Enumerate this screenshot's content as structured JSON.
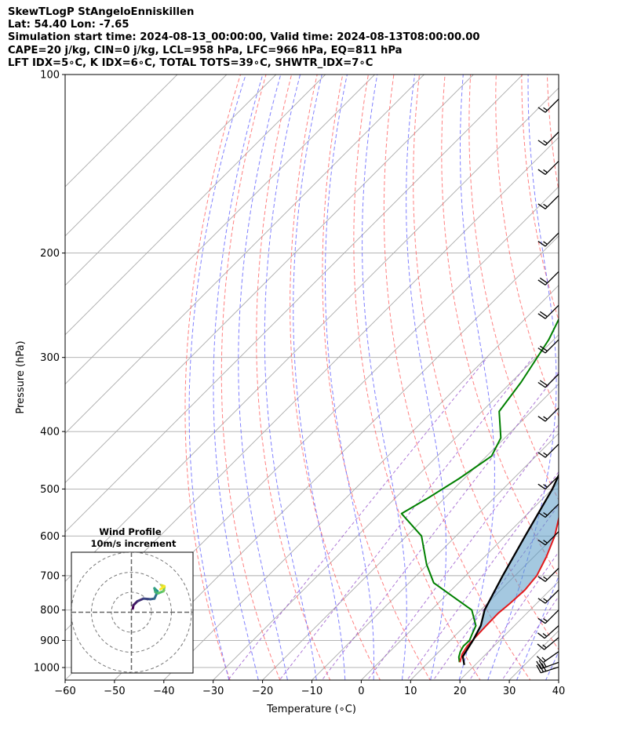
{
  "header": {
    "line1": "SkewTLogP StAngeloEnniskillen",
    "line2": "Lat: 54.40   Lon: -7.65",
    "line3": "Simulation start time: 2024-08-13_00:00:00, Valid time: 2024-08-13T08:00:00.00",
    "line4": "CAPE=20 j/kg, CIN=0 j/kg, LCL=958 hPa, LFC=966 hPa, EQ=811 hPa",
    "line5": "LFT IDX=5∘C, K IDX=6∘C, TOTAL TOTS=39∘C, SHWTR_IDX=7∘C"
  },
  "chart_data": {
    "type": "line",
    "subtype": "skew-T log-P",
    "xlabel": "Temperature (∘C)",
    "ylabel": "Pressure (hPa)",
    "xlim": [
      -60,
      40
    ],
    "ylim": [
      1050,
      100
    ],
    "y_scale": "log",
    "grid": true,
    "x_ticks": [
      "−60",
      "−50",
      "−40",
      "−30",
      "−20",
      "−10",
      "0",
      "10",
      "20",
      "30",
      "40"
    ],
    "y_ticks": [
      100,
      200,
      300,
      400,
      500,
      600,
      700,
      800,
      900,
      1000
    ],
    "colors": {
      "temperature": "#e31a1c",
      "dewpoint": "#008000",
      "parcel": "#000000",
      "cape_fill": "#5a9ac6",
      "dry_adiabat": "#ff6b6b",
      "moist_adiabat": "#6b6bff",
      "mixing_ratio": "#9955cc",
      "isotherm": "#aaaaaa"
    },
    "series": [
      {
        "role": "temperature",
        "points": [
          [
            16.4,
            980
          ],
          [
            15.2,
            950
          ],
          [
            14.6,
            920
          ],
          [
            14.4,
            880
          ],
          [
            14.3,
            850
          ],
          [
            14.2,
            810
          ],
          [
            14.6,
            780
          ],
          [
            14.9,
            740
          ],
          [
            14.4,
            700
          ],
          [
            12.5,
            650
          ],
          [
            10.0,
            600
          ],
          [
            6.5,
            550
          ],
          [
            2.0,
            500
          ],
          [
            -2.0,
            450
          ],
          [
            -6.5,
            400
          ],
          [
            -11.2,
            350
          ],
          [
            -16.0,
            300
          ],
          [
            -20.4,
            260
          ],
          [
            -24.0,
            240
          ],
          [
            -28.0,
            220
          ],
          [
            -30.0,
            200
          ],
          [
            -32.7,
            180
          ],
          [
            -37.0,
            160
          ],
          [
            -43.0,
            140
          ],
          [
            -50.0,
            120
          ],
          [
            -56.0,
            100
          ]
        ]
      },
      {
        "role": "dewpoint",
        "points": [
          [
            16.3,
            980
          ],
          [
            15.1,
            960
          ],
          [
            14.3,
            940
          ],
          [
            13.8,
            920
          ],
          [
            13.9,
            900
          ],
          [
            13.2,
            880
          ],
          [
            12.2,
            850
          ],
          [
            8.2,
            800
          ],
          [
            -5.0,
            720
          ],
          [
            -10.2,
            670
          ],
          [
            -17.0,
            600
          ],
          [
            -25.6,
            550
          ],
          [
            -23.5,
            520
          ],
          [
            -21.0,
            480
          ],
          [
            -19.0,
            440
          ],
          [
            -20.8,
            410
          ],
          [
            -26.5,
            370
          ],
          [
            -28.0,
            330
          ],
          [
            -31.0,
            280
          ],
          [
            -34.0,
            250
          ],
          [
            -38.0,
            200
          ],
          [
            -45.0,
            170
          ],
          [
            -51.0,
            160
          ],
          [
            -59.0,
            140
          ],
          [
            -69.0,
            100
          ]
        ]
      },
      {
        "role": "parcel",
        "points": [
          [
            17.8,
            990
          ],
          [
            16.3,
            966
          ],
          [
            15.8,
            958
          ],
          [
            14.6,
            900
          ],
          [
            13.2,
            850
          ],
          [
            10.8,
            800
          ],
          [
            7.5,
            700
          ],
          [
            4.0,
            600
          ],
          [
            0.0,
            500
          ],
          [
            -6.3,
            400
          ],
          [
            -14.5,
            300
          ],
          [
            -21.5,
            250
          ],
          [
            -31.0,
            200
          ],
          [
            -45.0,
            150
          ],
          [
            -65.0,
            100
          ]
        ]
      }
    ],
    "wind_barbs": [
      {
        "p": 998,
        "spd": 30,
        "dir": 252
      },
      {
        "p": 980,
        "spd": 25,
        "dir": 250
      },
      {
        "p": 940,
        "spd": 15,
        "dir": 235
      },
      {
        "p": 890,
        "spd": 15,
        "dir": 230
      },
      {
        "p": 850,
        "spd": 15,
        "dir": 228
      },
      {
        "p": 800,
        "spd": 15,
        "dir": 225
      },
      {
        "p": 740,
        "spd": 15,
        "dir": 225
      },
      {
        "p": 680,
        "spd": 15,
        "dir": 225
      },
      {
        "p": 590,
        "spd": 15,
        "dir": 225
      },
      {
        "p": 530,
        "spd": 15,
        "dir": 225
      },
      {
        "p": 475,
        "spd": 15,
        "dir": 225
      },
      {
        "p": 420,
        "spd": 15,
        "dir": 225
      },
      {
        "p": 365,
        "spd": 15,
        "dir": 225
      },
      {
        "p": 320,
        "spd": 20,
        "dir": 225
      },
      {
        "p": 280,
        "spd": 20,
        "dir": 225
      },
      {
        "p": 245,
        "spd": 20,
        "dir": 225
      },
      {
        "p": 215,
        "spd": 20,
        "dir": 225
      },
      {
        "p": 185,
        "spd": 15,
        "dir": 225
      },
      {
        "p": 160,
        "spd": 15,
        "dir": 225
      },
      {
        "p": 140,
        "spd": 15,
        "dir": 225
      },
      {
        "p": 125,
        "spd": 15,
        "dir": 225
      },
      {
        "p": 110,
        "spd": 15,
        "dir": 225
      }
    ],
    "hodograph": {
      "title_line1": "Wind Profile",
      "title_line2": "10m/s increment",
      "rings": [
        10,
        20,
        30
      ],
      "points": [
        [
          0.7,
          1.8
        ],
        [
          1.0,
          3.5
        ],
        [
          3.0,
          5.5
        ],
        [
          6.0,
          6.8
        ],
        [
          9.5,
          6.5
        ],
        [
          11.5,
          6.8
        ],
        [
          12.5,
          9.0
        ],
        [
          13.0,
          10.5
        ],
        [
          11.5,
          12.0
        ],
        [
          12.0,
          10.0
        ],
        [
          13.5,
          9.5
        ],
        [
          16.0,
          10.5
        ],
        [
          16.5,
          12.5
        ],
        [
          15.0,
          13.5
        ],
        [
          16.5,
          13.0
        ],
        [
          14.5,
          11.5
        ]
      ]
    }
  }
}
